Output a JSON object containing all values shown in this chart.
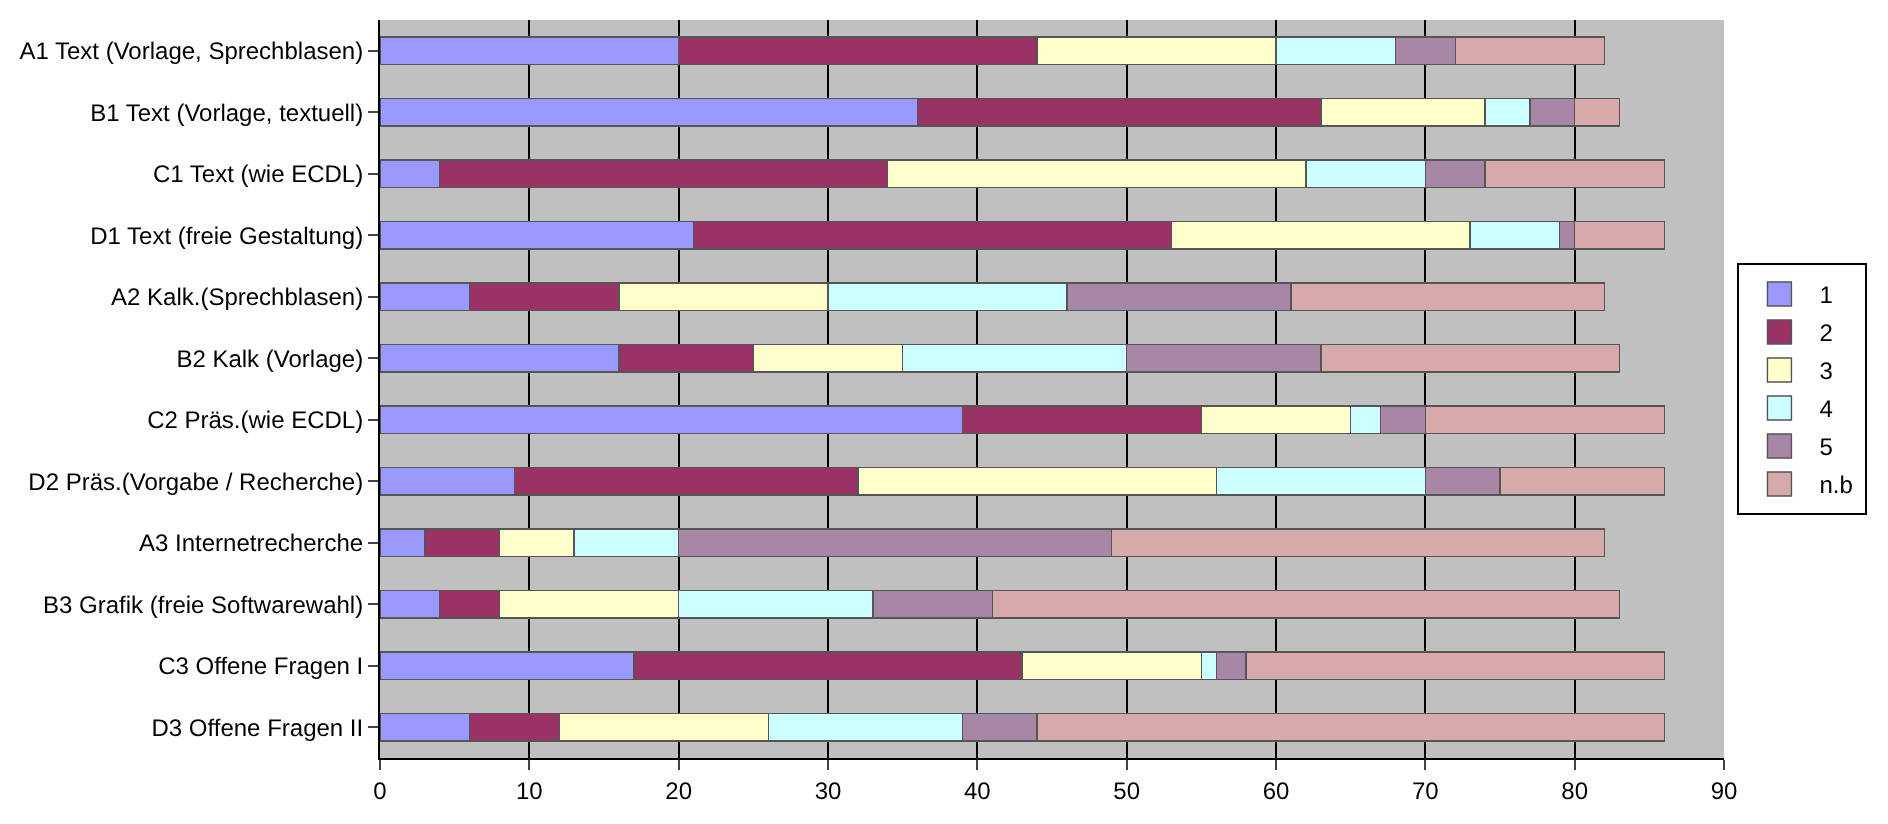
{
  "chart_data": {
    "type": "bar",
    "orientation": "horizontal",
    "stacked": true,
    "categories": [
      "A1 Text (Vorlage, Sprechblasen)",
      "B1 Text (Vorlage, textuell)",
      "C1 Text (wie ECDL)",
      "D1 Text (freie Gestaltung)",
      "A2 Kalk.(Sprechblasen)",
      "B2 Kalk (Vorlage)",
      "C2 Präs.(wie ECDL)",
      "D2 Präs.(Vorgabe / Recherche)",
      "A3 Internetrecherche",
      "B3 Grafik (freie Softwarewahl)",
      "C3 Offene Fragen I",
      "D3 Offene Fragen II"
    ],
    "series": [
      {
        "name": "1",
        "color": "#9999ff",
        "values": [
          20,
          36,
          4,
          21,
          6,
          16,
          39,
          9,
          3,
          4,
          17,
          6
        ]
      },
      {
        "name": "2",
        "color": "#993366",
        "values": [
          24,
          27,
          30,
          32,
          10,
          9,
          16,
          23,
          5,
          4,
          26,
          6
        ]
      },
      {
        "name": "3",
        "color": "#ffffcc",
        "values": [
          16,
          11,
          28,
          20,
          14,
          10,
          10,
          24,
          5,
          12,
          12,
          14
        ]
      },
      {
        "name": "4",
        "color": "#ccffff",
        "values": [
          8,
          3,
          8,
          6,
          16,
          15,
          2,
          14,
          7,
          13,
          1,
          13
        ]
      },
      {
        "name": "5",
        "color": "#a886a6",
        "values": [
          4,
          3,
          4,
          1,
          15,
          13,
          3,
          5,
          29,
          8,
          2,
          5
        ]
      },
      {
        "name": "n.b",
        "color": "#d6aaaa",
        "values": [
          10,
          3,
          12,
          6,
          21,
          20,
          16,
          11,
          33,
          42,
          28,
          42
        ]
      }
    ],
    "xlim": [
      0,
      90
    ],
    "xticks": [
      0,
      10,
      20,
      30,
      40,
      50,
      60,
      70,
      80,
      90
    ],
    "grid": "x",
    "legend": "right"
  }
}
